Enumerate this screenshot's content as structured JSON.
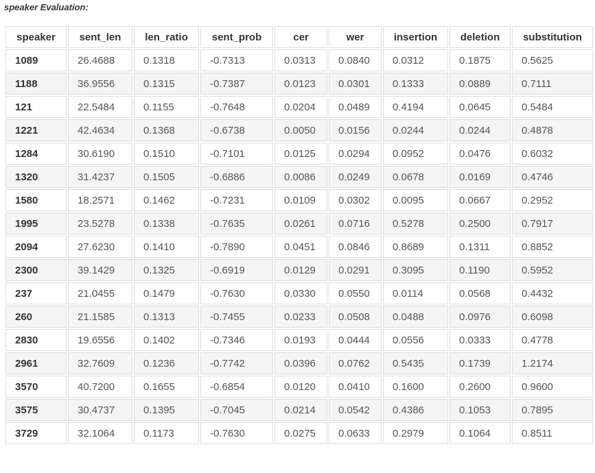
{
  "caption": "speaker Evaluation:",
  "columns": [
    "speaker",
    "sent_len",
    "len_ratio",
    "sent_prob",
    "cer",
    "wer",
    "insertion",
    "deletion",
    "substitution"
  ],
  "rows": [
    [
      "1089",
      "26.4688",
      "0.1318",
      "-0.7313",
      "0.0313",
      "0.0840",
      "0.0312",
      "0.1875",
      "0.5625"
    ],
    [
      "1188",
      "36.9556",
      "0.1315",
      "-0.7387",
      "0.0123",
      "0.0301",
      "0.1333",
      "0.0889",
      "0.7111"
    ],
    [
      "121",
      "22.5484",
      "0.1155",
      "-0.7648",
      "0.0204",
      "0.0489",
      "0.4194",
      "0.0645",
      "0.5484"
    ],
    [
      "1221",
      "42.4634",
      "0.1368",
      "-0.6738",
      "0.0050",
      "0.0156",
      "0.0244",
      "0.0244",
      "0.4878"
    ],
    [
      "1284",
      "30.6190",
      "0.1510",
      "-0.7101",
      "0.0125",
      "0.0294",
      "0.0952",
      "0.0476",
      "0.6032"
    ],
    [
      "1320",
      "31.4237",
      "0.1505",
      "-0.6886",
      "0.0086",
      "0.0249",
      "0.0678",
      "0.0169",
      "0.4746"
    ],
    [
      "1580",
      "18.2571",
      "0.1462",
      "-0.7231",
      "0.0109",
      "0.0302",
      "0.0095",
      "0.0667",
      "0.2952"
    ],
    [
      "1995",
      "23.5278",
      "0.1338",
      "-0.7635",
      "0.0261",
      "0.0716",
      "0.5278",
      "0.2500",
      "0.7917"
    ],
    [
      "2094",
      "27.6230",
      "0.1410",
      "-0.7890",
      "0.0451",
      "0.0846",
      "0.8689",
      "0.1311",
      "0.8852"
    ],
    [
      "2300",
      "39.1429",
      "0.1325",
      "-0.6919",
      "0.0129",
      "0.0291",
      "0.3095",
      "0.1190",
      "0.5952"
    ],
    [
      "237",
      "21.0455",
      "0.1479",
      "-0.7630",
      "0.0330",
      "0.0550",
      "0.0114",
      "0.0568",
      "0.4432"
    ],
    [
      "260",
      "21.1585",
      "0.1313",
      "-0.7455",
      "0.0233",
      "0.0508",
      "0.0488",
      "0.0976",
      "0.6098"
    ],
    [
      "2830",
      "19.6556",
      "0.1402",
      "-0.7346",
      "0.0193",
      "0.0444",
      "0.0556",
      "0.0333",
      "0.4778"
    ],
    [
      "2961",
      "32.7609",
      "0.1236",
      "-0.7742",
      "0.0396",
      "0.0762",
      "0.5435",
      "0.1739",
      "1.2174"
    ],
    [
      "3570",
      "40.7200",
      "0.1655",
      "-0.6854",
      "0.0120",
      "0.0410",
      "0.1600",
      "0.2600",
      "0.9600"
    ],
    [
      "3575",
      "30.4737",
      "0.1395",
      "-0.7045",
      "0.0214",
      "0.0542",
      "0.4386",
      "0.1053",
      "0.7895"
    ],
    [
      "3729",
      "32.1064",
      "0.1173",
      "-0.7630",
      "0.0275",
      "0.0633",
      "0.2979",
      "0.1064",
      "0.8511"
    ]
  ]
}
